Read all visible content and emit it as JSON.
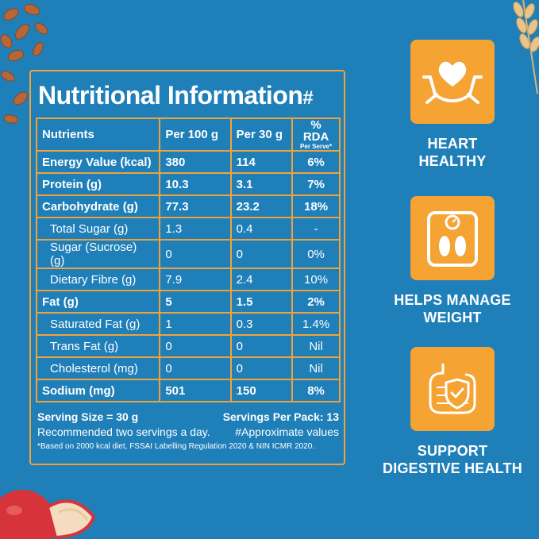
{
  "panel": {
    "title": "Nutritional Information",
    "title_mark": "#",
    "columns": {
      "nutrient": "Nutrients",
      "per100": "Per 100 g",
      "per30": "Per 30 g",
      "rda": "% RDA",
      "rda_sub": "Per Serve*"
    },
    "rows": [
      {
        "name": "Energy Value (kcal)",
        "per100": "380",
        "per30": "114",
        "rda": "6%"
      },
      {
        "name": "Protein (g)",
        "per100": "10.3",
        "per30": "3.1",
        "rda": "7%"
      },
      {
        "name": "Carbohydrate (g)",
        "per100": "77.3",
        "per30": "23.2",
        "rda": "18%"
      },
      {
        "name": "Total Sugar (g)",
        "per100": "1.3",
        "per30": "0.4",
        "rda": "-"
      },
      {
        "name": "Sugar (Sucrose) (g)",
        "per100": "0",
        "per30": "0",
        "rda": "0%"
      },
      {
        "name": "Dietary Fibre (g)",
        "per100": "7.9",
        "per30": "2.4",
        "rda": "10%"
      },
      {
        "name": "Fat (g)",
        "per100": "5",
        "per30": "1.5",
        "rda": "2%"
      },
      {
        "name": "Saturated Fat (g)",
        "per100": "1",
        "per30": "0.3",
        "rda": "1.4%"
      },
      {
        "name": "Trans Fat (g)",
        "per100": "0",
        "per30": "0",
        "rda": "Nil"
      },
      {
        "name": "Cholesterol (mg)",
        "per100": "0",
        "per30": "0",
        "rda": "Nil"
      },
      {
        "name": "Sodium (mg)",
        "per100": "501",
        "per30": "150",
        "rda": "8%"
      }
    ],
    "footer": {
      "serving_size": "Serving Size = 30 g",
      "servings_per_pack": "Servings Per Pack: 13",
      "recommendation": "Recommended two servings a day.",
      "approx": "#Approximate values",
      "note": "*Based on 2000 kcal diet, FSSAI Labelling Regulation 2020 & NIN ICMR 2020."
    }
  },
  "benefits": [
    {
      "icon": "heart-hands-icon",
      "line1": "HEART",
      "line2": "HEALTHY"
    },
    {
      "icon": "weighing-scale-icon",
      "line1": "HELPS MANAGE",
      "line2": "WEIGHT"
    },
    {
      "icon": "digestive-shield-icon",
      "line1": "SUPPORT",
      "line2": "DIGESTIVE HEALTH"
    }
  ],
  "colors": {
    "background": "#1f7fb9",
    "accent": "#f5a332",
    "border": "#f2a23a",
    "text": "#ffffff"
  }
}
